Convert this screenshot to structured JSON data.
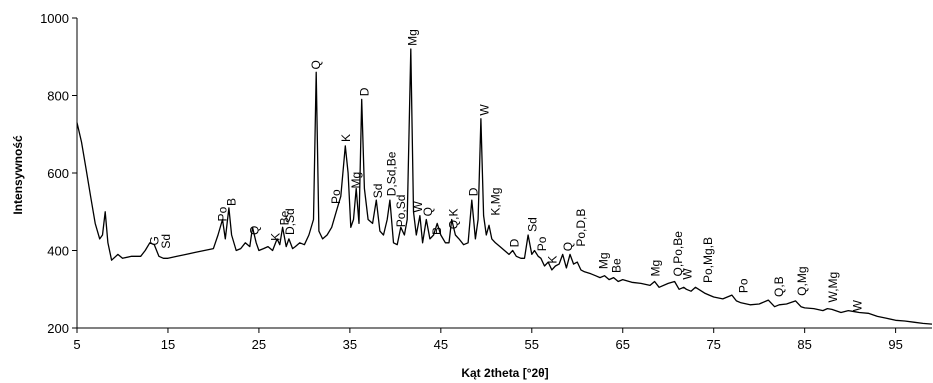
{
  "chart_data": {
    "type": "line",
    "xlabel": "Kąt 2theta [°2θ]",
    "ylabel": "Intensywność",
    "xlim": [
      5,
      99
    ],
    "ylim": [
      200,
      1000
    ],
    "xticks": [
      5,
      15,
      25,
      35,
      45,
      55,
      65,
      75,
      85,
      95
    ],
    "yticks": [
      200,
      400,
      600,
      800,
      1000
    ],
    "grid": false,
    "line_color": "#000000",
    "series": [
      {
        "x": [
          5,
          5.5,
          6,
          6.5,
          7,
          7.5,
          7.8,
          8.1,
          8.4,
          8.8,
          9.5,
          10,
          11,
          12,
          12.5,
          13,
          13.5,
          14,
          14.5,
          15,
          16,
          17,
          18,
          19,
          20,
          20.5,
          21,
          21.3,
          21.7,
          22,
          22.5,
          23,
          23.5,
          24,
          24.3,
          24.7,
          25,
          25.5,
          26,
          26.5,
          27,
          27.3,
          27.6,
          28,
          28.3,
          28.7,
          29,
          29.5,
          30,
          30.5,
          31,
          31.3,
          31.6,
          32,
          32.5,
          33,
          33.5,
          34,
          34.5,
          34.8,
          35.1,
          35.4,
          35.7,
          36,
          36.3,
          36.6,
          37,
          37.5,
          37.9,
          38.3,
          38.7,
          39.1,
          39.4,
          39.8,
          40.2,
          40.6,
          41,
          41.3,
          41.7,
          42,
          42.3,
          42.7,
          43,
          43.4,
          43.8,
          44.2,
          44.6,
          45,
          45.5,
          45.9,
          46.2,
          46.6,
          47,
          47.5,
          48,
          48.4,
          48.8,
          49.1,
          49.4,
          49.7,
          50,
          50.3,
          50.6,
          51,
          51.5,
          52,
          52.5,
          52.9,
          53.3,
          53.8,
          54.2,
          54.6,
          55,
          55.3,
          55.7,
          56,
          56.4,
          56.8,
          57.2,
          57.6,
          58,
          58.4,
          58.8,
          59.2,
          59.6,
          60,
          60.4,
          60.8,
          61.5,
          62,
          62.5,
          63,
          63.5,
          64,
          64.5,
          65,
          66,
          67,
          68,
          68.5,
          69,
          70,
          70.7,
          71.2,
          71.7,
          72,
          72.5,
          73,
          74,
          74.5,
          75,
          76,
          77,
          77.5,
          78,
          79,
          80,
          81,
          81.7,
          82.2,
          83,
          84,
          84.6,
          85,
          86,
          87,
          87.5,
          88,
          89,
          89.8,
          90.5,
          91,
          92,
          93,
          94,
          95,
          96,
          97,
          98,
          99
        ],
        "y": [
          730,
          680,
          610,
          540,
          470,
          430,
          440,
          500,
          420,
          375,
          390,
          380,
          385,
          385,
          400,
          420,
          415,
          385,
          380,
          380,
          385,
          390,
          395,
          400,
          405,
          440,
          480,
          430,
          510,
          440,
          400,
          405,
          420,
          410,
          460,
          420,
          400,
          405,
          410,
          400,
          430,
          415,
          460,
          410,
          430,
          405,
          410,
          420,
          415,
          440,
          480,
          860,
          450,
          430,
          440,
          460,
          500,
          540,
          670,
          600,
          460,
          480,
          560,
          470,
          790,
          560,
          480,
          470,
          530,
          450,
          440,
          480,
          530,
          420,
          415,
          460,
          440,
          480,
          920,
          500,
          440,
          490,
          420,
          480,
          430,
          440,
          470,
          440,
          420,
          420,
          480,
          440,
          430,
          415,
          420,
          530,
          430,
          480,
          740,
          490,
          440,
          465,
          430,
          420,
          410,
          400,
          390,
          400,
          385,
          380,
          380,
          440,
          390,
          400,
          385,
          380,
          360,
          370,
          350,
          360,
          365,
          390,
          355,
          390,
          365,
          370,
          350,
          345,
          340,
          335,
          330,
          335,
          325,
          330,
          320,
          325,
          318,
          315,
          310,
          320,
          305,
          315,
          320,
          300,
          305,
          300,
          295,
          305,
          290,
          285,
          280,
          275,
          285,
          270,
          265,
          260,
          262,
          272,
          255,
          260,
          262,
          270,
          255,
          252,
          250,
          245,
          250,
          248,
          240,
          245,
          242,
          240,
          238,
          230,
          225,
          220,
          218,
          215,
          212,
          210
        ]
      }
    ],
    "annotations": [
      {
        "text": "G",
        "x": 13.5,
        "y": 413
      },
      {
        "text": "Sd",
        "x": 14.8,
        "y": 405
      },
      {
        "text": "Po",
        "x": 21.0,
        "y": 475
      },
      {
        "text": "B",
        "x": 22.0,
        "y": 515
      },
      {
        "text": "Q",
        "x": 24.5,
        "y": 440
      },
      {
        "text": "K",
        "x": 26.8,
        "y": 425
      },
      {
        "text": "Be",
        "x": 27.8,
        "y": 465
      },
      {
        "text": "D,Sd",
        "x": 28.4,
        "y": 440
      },
      {
        "text": "Q",
        "x": 31.3,
        "y": 867
      },
      {
        "text": "Po",
        "x": 33.5,
        "y": 520
      },
      {
        "text": "K",
        "x": 34.6,
        "y": 680
      },
      {
        "text": "Mg",
        "x": 35.7,
        "y": 560
      },
      {
        "text": "D",
        "x": 36.6,
        "y": 798
      },
      {
        "text": "Sd",
        "x": 38.1,
        "y": 535
      },
      {
        "text": "D,Sd,Be",
        "x": 39.6,
        "y": 540
      },
      {
        "text": "Po,Sd",
        "x": 40.6,
        "y": 460
      },
      {
        "text": "Mg",
        "x": 41.9,
        "y": 928
      },
      {
        "text": "W",
        "x": 42.5,
        "y": 498
      },
      {
        "text": "Q",
        "x": 43.6,
        "y": 488
      },
      {
        "text": "B",
        "x": 44.6,
        "y": 440
      },
      {
        "text": "Q,K",
        "x": 46.4,
        "y": 455
      },
      {
        "text": "D",
        "x": 48.6,
        "y": 540
      },
      {
        "text": "W",
        "x": 49.8,
        "y": 748
      },
      {
        "text": "K,Mg",
        "x": 51.0,
        "y": 490
      },
      {
        "text": "D",
        "x": 53.1,
        "y": 408
      },
      {
        "text": "Sd",
        "x": 55.1,
        "y": 448
      },
      {
        "text": "Po",
        "x": 56.1,
        "y": 398
      },
      {
        "text": "K",
        "x": 57.3,
        "y": 366
      },
      {
        "text": "Q",
        "x": 59.0,
        "y": 398
      },
      {
        "text": "Po,D,B",
        "x": 60.4,
        "y": 410
      },
      {
        "text": "Mg",
        "x": 62.9,
        "y": 352
      },
      {
        "text": "Be",
        "x": 64.3,
        "y": 342
      },
      {
        "text": "Mg",
        "x": 68.6,
        "y": 333
      },
      {
        "text": "Q,Po,Be",
        "x": 71.1,
        "y": 333
      },
      {
        "text": "W",
        "x": 72.1,
        "y": 325
      },
      {
        "text": "Po,Mg,B",
        "x": 74.4,
        "y": 316
      },
      {
        "text": "Po",
        "x": 78.3,
        "y": 290
      },
      {
        "text": "Q,B",
        "x": 82.2,
        "y": 280
      },
      {
        "text": "Q,Mg",
        "x": 84.7,
        "y": 283
      },
      {
        "text": "W,Mg",
        "x": 88.1,
        "y": 266
      },
      {
        "text": "W",
        "x": 90.8,
        "y": 243
      }
    ]
  }
}
